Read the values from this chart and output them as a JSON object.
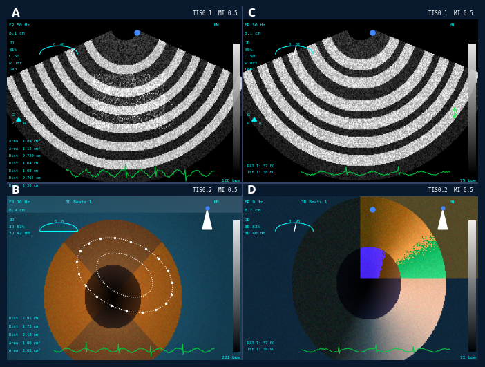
{
  "panels": [
    "A",
    "B",
    "C",
    "D"
  ],
  "header_color": "#1a3a5c",
  "bg_color": "#000000",
  "panel_bg": "#000000",
  "header_text_color": "#ffffff",
  "ui_text_color": "#00ffff",
  "green_text_color": "#00ff88",
  "header_bar_height": 0.038,
  "top_bar": {
    "A": {
      "left": "TIS0.1  MI 0.5",
      "label": "A"
    },
    "B": {
      "left": "TIS0.2  MI 0.5",
      "label": "B"
    },
    "C": {
      "left": "TIS0.1  MI 0.5",
      "label": "C"
    },
    "D": {
      "left": "TIS0.2  MI 0.5",
      "label": "D"
    }
  },
  "panel_A": {
    "fr": "FR 50 Hz",
    "depth": "8.1 cm",
    "mode": "2D\n61%\nC 50\nP Off\nGen",
    "angle": "0  40",
    "bpm": "126 bpm",
    "mm": "MM",
    "measurements": [
      "Area  1.89 cm²",
      "Area  1.12 cm²",
      "Dist  0.729 cm",
      "Dist  1.64 cm",
      "Dist  1.08 cm",
      "Dist  0.765 cm",
      "Dist  2.30 cm"
    ]
  },
  "panel_B": {
    "fr": "FR 10 Hz",
    "freq3d": "3D Beats 1",
    "depth": "6.9 cm",
    "mode": "3D\n3D 52%\n3D 42 dB",
    "angle": "0  0",
    "bpm": "221 bpm",
    "mm": "MM",
    "measurements": [
      "Dist  2.91 cm",
      "Dist  1.73 cm",
      "Dist  2.18 cm",
      "Area  1.00 cm²",
      "Area  3.08 cm²"
    ]
  },
  "panel_C": {
    "fr": "FR 50 Hz",
    "depth": "8.1 cm",
    "mode": "2D\n55%\nC 50\nP Off\nGen",
    "angle": "0  81",
    "bpm": "75 bpm",
    "mm": "M4",
    "pat": "PAT T: 37.0C",
    "tee": "TEE T: 38.6C",
    "measurements": []
  },
  "panel_D": {
    "fr": "FR 9 Hz",
    "freq3d": "3D Beats 1",
    "depth": "6.7 cm",
    "mode": "3D\n3D 52%\n3D 40 dB",
    "angle": "0  90",
    "bpm": "72 bpm",
    "mm": "M4",
    "pat": "PAT T: 37.0C",
    "tee": "TEE T: 38.9C",
    "measurements": []
  }
}
